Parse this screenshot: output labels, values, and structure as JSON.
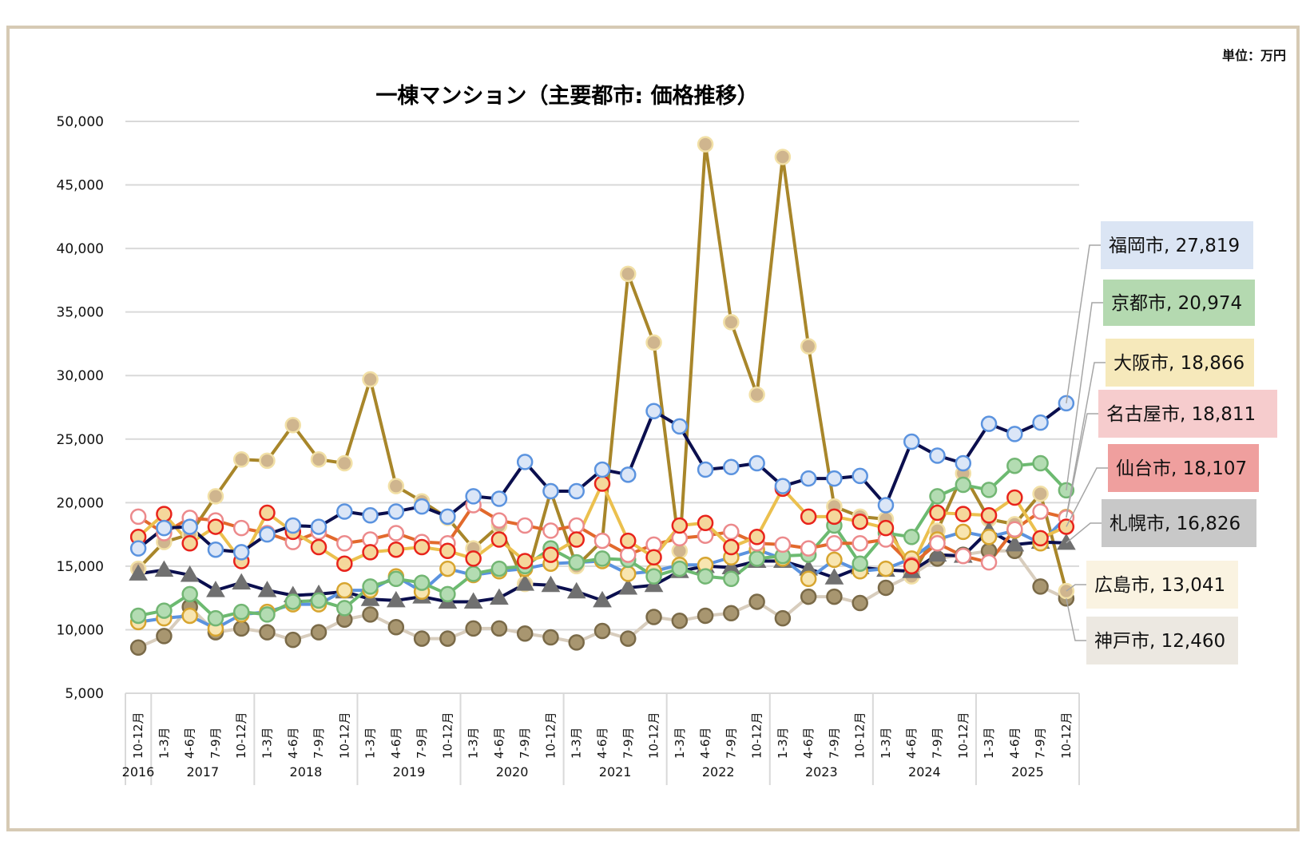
{
  "unit_label": "単位：万円",
  "chart_data": {
    "type": "line",
    "title": "一棟マンション（主要都市: 価格推移）",
    "xlabel": "",
    "ylabel": "",
    "unit": "万円",
    "ylim": [
      5000,
      50000
    ],
    "yticks": [
      5000,
      10000,
      15000,
      20000,
      25000,
      30000,
      35000,
      40000,
      45000,
      50000
    ],
    "ytick_labels": [
      "5,000",
      "10,000",
      "15,000",
      "20,000",
      "25,000",
      "30,000",
      "35,000",
      "40,000",
      "45,000",
      "50,000"
    ],
    "grid": true,
    "legend": "right (data labels at line ends)",
    "categories": [
      "10-12月",
      "1-3月",
      "4-6月",
      "7-9月",
      "10-12月",
      "1-3月",
      "4-6月",
      "7-9月",
      "10-12月",
      "1-3月",
      "4-6月",
      "7-9月",
      "10-12月",
      "1-3月",
      "4-6月",
      "7-9月",
      "10-12月",
      "1-3月",
      "4-6月",
      "7-9月",
      "10-12月",
      "1-3月",
      "4-6月",
      "7-9月",
      "10-12月",
      "1-3月",
      "4-6月",
      "7-9月",
      "10-12月",
      "1-3月",
      "4-6月",
      "7-9月",
      "10-12月",
      "1-3月",
      "4-6月",
      "7-9月",
      "10-12月"
    ],
    "years": [
      {
        "label": "2016",
        "start": 0,
        "count": 1
      },
      {
        "label": "2017",
        "start": 1,
        "count": 4
      },
      {
        "label": "2018",
        "start": 5,
        "count": 4
      },
      {
        "label": "2019",
        "start": 9,
        "count": 4
      },
      {
        "label": "2020",
        "start": 13,
        "count": 4
      },
      {
        "label": "2021",
        "start": 17,
        "count": 4
      },
      {
        "label": "2022",
        "start": 21,
        "count": 4
      },
      {
        "label": "2023",
        "start": 25,
        "count": 4
      },
      {
        "label": "2024",
        "start": 29,
        "count": 4
      },
      {
        "label": "2025",
        "start": 33,
        "count": 4
      }
    ],
    "series": [
      {
        "name": "神戸市",
        "end_label": "神戸市, 12,460",
        "label_bg": "#ece8e1",
        "line": "#d8cdbd",
        "marker": "circle",
        "fill": "#a89670",
        "stroke": "#7a6a48",
        "values": [
          8600,
          9500,
          11800,
          9800,
          10100,
          9800,
          9200,
          9800,
          10800,
          11200,
          10200,
          9300,
          9300,
          10100,
          10100,
          9700,
          9400,
          9000,
          9900,
          9300,
          11000,
          10700,
          11100,
          11300,
          12200,
          10900,
          12600,
          12600,
          12100,
          13300,
          14300,
          15600,
          15900,
          16200,
          16200,
          13400,
          12460
        ]
      },
      {
        "name": "広島市",
        "end_label": "広島市, 13,041",
        "label_bg": "#faf3e1",
        "line": "#a8862a",
        "marker": "circle",
        "fill": "#cfb58e",
        "stroke": "#f2e0a6",
        "values": [
          14800,
          16900,
          17500,
          20500,
          23400,
          23300,
          26100,
          23400,
          23100,
          29700,
          21300,
          20100,
          18800,
          16400,
          18200,
          13600,
          20900,
          15000,
          17000,
          38000,
          32600,
          16200,
          48200,
          34200,
          28500,
          47200,
          32300,
          19700,
          18900,
          18700,
          14200,
          17800,
          22300,
          18700,
          18300,
          20700,
          13041
        ]
      },
      {
        "name": "札幌市",
        "end_label": "札幌市, 16,826",
        "label_bg": "#c8c8c8",
        "line": "#0b0f4e",
        "marker": "triangle",
        "fill": "#707070",
        "stroke": "#707070",
        "values": [
          14400,
          14700,
          14300,
          13100,
          13700,
          13100,
          12700,
          12800,
          13000,
          12400,
          12300,
          12600,
          12200,
          12200,
          12500,
          13600,
          13500,
          13000,
          12300,
          13300,
          13500,
          14600,
          15000,
          14900,
          15400,
          15400,
          14800,
          14100,
          14900,
          14700,
          14600,
          15900,
          15800,
          17800,
          16700,
          16900,
          16826
        ]
      },
      {
        "name": "大阪市",
        "end_label": "大阪市, 18,866",
        "label_bg": "#f6e9bb",
        "line": "#5b93df",
        "marker": "circle",
        "fill": "#f8e5b0",
        "stroke": "#d7a530",
        "values": [
          10600,
          10900,
          11100,
          10100,
          11200,
          11400,
          12000,
          12000,
          13100,
          13100,
          14200,
          13000,
          14800,
          14300,
          14600,
          14800,
          15200,
          15300,
          15400,
          14400,
          14600,
          15100,
          15100,
          15700,
          16300,
          15600,
          14000,
          15500,
          14600,
          14800,
          15600,
          17100,
          17700,
          17300,
          17800,
          16800,
          18866
        ]
      },
      {
        "name": "京都市",
        "end_label": "京都市, 20,974",
        "label_bg": "#b4d9b0",
        "line": "#6cba70",
        "marker": "circle",
        "fill": "#b3dcb2",
        "stroke": "#72b673",
        "values": [
          11100,
          11500,
          12800,
          10900,
          11400,
          11200,
          12200,
          12300,
          11700,
          13400,
          14000,
          13700,
          12800,
          14400,
          14800,
          15000,
          16400,
          15300,
          15600,
          15500,
          14200,
          14800,
          14200,
          14000,
          15600,
          15800,
          15900,
          18200,
          15200,
          17600,
          17300,
          20500,
          21400,
          21000,
          22900,
          23100,
          20974
        ]
      },
      {
        "name": "名古屋市",
        "end_label": "名古屋市, 18,811",
        "label_bg": "#f6cccd",
        "line": "#e2692c",
        "marker": "circle",
        "fill": "#ffffff",
        "stroke": "#ec8a8c",
        "values": [
          18900,
          17600,
          18800,
          18600,
          18000,
          17600,
          16900,
          17700,
          16800,
          17100,
          17600,
          16900,
          16800,
          19800,
          18600,
          18200,
          17800,
          18200,
          17000,
          15900,
          16700,
          17200,
          17400,
          17700,
          16800,
          16700,
          16400,
          16800,
          16800,
          17100,
          15100,
          16800,
          15800,
          15300,
          17900,
          19300,
          18811
        ]
      },
      {
        "name": "仙台市",
        "end_label": "仙台市, 18,107",
        "label_bg": "#ef9f9e",
        "line": "#ebc04e",
        "marker": "circle",
        "fill": "#f5d79b",
        "stroke": "#e8231b",
        "values": [
          17300,
          19100,
          16800,
          18100,
          15400,
          19200,
          17700,
          16500,
          15200,
          16100,
          16300,
          16500,
          16200,
          15600,
          17100,
          15400,
          15900,
          17100,
          21500,
          17000,
          15700,
          18200,
          18400,
          16500,
          17300,
          21100,
          18900,
          18900,
          18500,
          18000,
          15000,
          19200,
          19100,
          19000,
          20400,
          17200,
          18107
        ]
      },
      {
        "name": "福岡市",
        "end_label": "福岡市, 27,819",
        "label_bg": "#dbe5f4",
        "line": "#0b0f4e",
        "marker": "circle",
        "fill": "#dbe6f7",
        "stroke": "#5b93df",
        "values": [
          16400,
          18000,
          18100,
          16300,
          16100,
          17500,
          18200,
          18100,
          19300,
          19000,
          19300,
          19700,
          18900,
          20500,
          20300,
          23200,
          20900,
          20900,
          22600,
          22200,
          27200,
          26000,
          22600,
          22800,
          23100,
          21300,
          21900,
          21900,
          22100,
          19800,
          24800,
          23700,
          23100,
          26200,
          25400,
          26300,
          27819
        ]
      }
    ]
  }
}
